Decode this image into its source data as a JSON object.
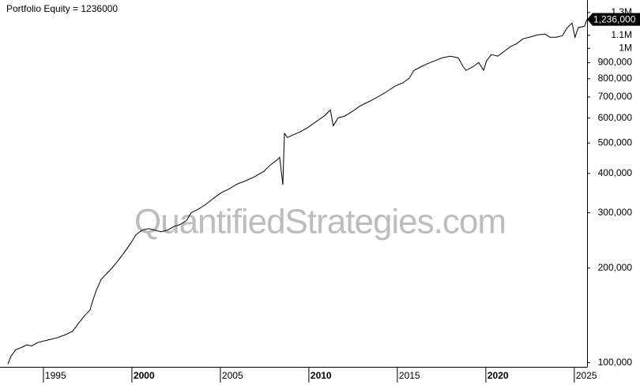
{
  "chart_data": {
    "type": "line",
    "title": "Portfolio Equity = 1236000",
    "watermark": "QuantifiedStrategies.com",
    "log_scale": true,
    "grid": false,
    "x": [
      1992.99,
      1993.17,
      1993.44,
      1993.79,
      1994.06,
      1994.33,
      1994.69,
      1995.22,
      1995.76,
      1996.29,
      1996.65,
      1997.01,
      1997.37,
      1997.63,
      1997.81,
      1997.99,
      1998.26,
      1998.53,
      1998.88,
      1999.24,
      1999.51,
      1999.78,
      2000.04,
      2000.22,
      2000.58,
      2000.94,
      2001.29,
      2001.65,
      2002.01,
      2002.37,
      2002.72,
      2003.08,
      2003.35,
      2003.71,
      2004.15,
      2004.6,
      2005.04,
      2005.49,
      2005.94,
      2006.38,
      2006.92,
      2007.46,
      2007.81,
      2008.17,
      2008.35,
      2008.53,
      2008.62,
      2008.79,
      2009.06,
      2009.51,
      2009.96,
      2010.4,
      2010.85,
      2011.21,
      2011.38,
      2011.65,
      2012.01,
      2012.46,
      2012.9,
      2013.35,
      2013.79,
      2014.33,
      2014.87,
      2015.31,
      2015.67,
      2015.94,
      2016.29,
      2016.65,
      2017.1,
      2017.54,
      2017.99,
      2018.44,
      2018.71,
      2018.88,
      2019.24,
      2019.6,
      2019.87,
      2020.04,
      2020.31,
      2020.67,
      2021.03,
      2021.38,
      2021.74,
      2022.1,
      2022.46,
      2022.9,
      2023.35,
      2023.62,
      2023.97,
      2024.33,
      2024.6,
      2024.87,
      2025.04,
      2025.22,
      2025.58,
      2025.71
    ],
    "series": [
      {
        "name": "Portfolio Equity",
        "color": "#000000",
        "values": [
          99000,
          105000,
          110000,
          112000,
          114000,
          113000,
          116000,
          118000,
          120000,
          123000,
          126000,
          134000,
          142000,
          147000,
          159000,
          170000,
          184000,
          191000,
          200000,
          212000,
          222000,
          233000,
          245000,
          255000,
          264000,
          267000,
          264000,
          261000,
          264000,
          271000,
          275000,
          283000,
          300000,
          307000,
          318000,
          333000,
          347000,
          357000,
          370000,
          378000,
          390000,
          406000,
          425000,
          440000,
          450000,
          368000,
          536000,
          520000,
          529000,
          542000,
          561000,
          584000,
          608000,
          637000,
          567000,
          601000,
          608000,
          630000,
          656000,
          675000,
          695000,
          724000,
          758000,
          776000,
          803000,
          851000,
          871000,
          891000,
          912000,
          933000,
          944000,
          933000,
          876000,
          851000,
          871000,
          901000,
          851000,
          912000,
          955000,
          944000,
          977000,
          1012000,
          1035000,
          1072000,
          1084000,
          1103000,
          1110000,
          1084000,
          1084000,
          1097000,
          1163000,
          1204000,
          1084000,
          1163000,
          1176000,
          1236000
        ],
        "value_labels": [
          null,
          null,
          null,
          null,
          null,
          null,
          null,
          null,
          null,
          null,
          null,
          null,
          null,
          null,
          null,
          null,
          null,
          null,
          null,
          null,
          null,
          null,
          null,
          null,
          null,
          null,
          null,
          null,
          null,
          null,
          null,
          null,
          null,
          null,
          null,
          null,
          null,
          null,
          null,
          null,
          null,
          null,
          null,
          null,
          null,
          null,
          null,
          null,
          null,
          null,
          null,
          null,
          null,
          null,
          null,
          null,
          null,
          null,
          null,
          null,
          null,
          null,
          null,
          null,
          null,
          null,
          null,
          null,
          null,
          null,
          null,
          null,
          null,
          null,
          null,
          null,
          null,
          null,
          null,
          null,
          null,
          null,
          null,
          null,
          null,
          null,
          null,
          null,
          null,
          null,
          null,
          null,
          null,
          null,
          null,
          "1,236,000"
        ]
      }
    ],
    "xlim": [
      1992.68,
      2025.72
    ],
    "xticks": [
      1995,
      2000,
      2005,
      2010,
      2015,
      2020,
      2025
    ],
    "ylim": [
      97000,
      1400000
    ],
    "yticks": [
      {
        "value": 100000,
        "label": "100,000"
      },
      {
        "value": 200000,
        "label": "200,000"
      },
      {
        "value": 300000,
        "label": "300,000"
      },
      {
        "value": 400000,
        "label": "400,000"
      },
      {
        "value": 500000,
        "label": "500,000"
      },
      {
        "value": 600000,
        "label": "600,000"
      },
      {
        "value": 700000,
        "label": "700,000"
      },
      {
        "value": 800000,
        "label": "800,000"
      },
      {
        "value": 900000,
        "label": "900,000"
      },
      {
        "value": 1000000,
        "label": "1M"
      },
      {
        "value": 1100000,
        "label": "1.1M"
      },
      {
        "value": 1300000,
        "label": "1.3M"
      }
    ]
  }
}
